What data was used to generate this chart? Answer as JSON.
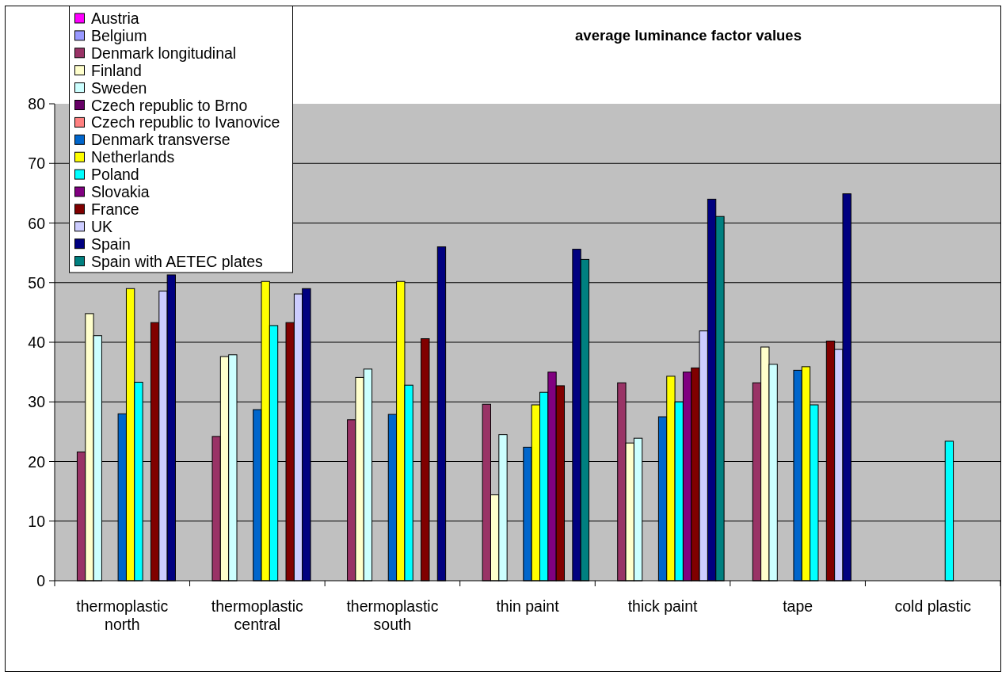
{
  "chart_data": {
    "type": "bar",
    "title": "average luminance factor values",
    "categories": [
      "thermoplastic north",
      "thermoplastic central",
      "thermoplastic south",
      "thin paint",
      "thick paint",
      "tape",
      "cold plastic"
    ],
    "series": [
      {
        "name": "Austria",
        "color": "#ff00ff",
        "values": [
          null,
          null,
          null,
          null,
          null,
          null,
          null
        ]
      },
      {
        "name": "Belgium",
        "color": "#9999ff",
        "values": [
          null,
          null,
          null,
          null,
          null,
          null,
          null
        ]
      },
      {
        "name": "Denmark longitudinal",
        "color": "#993366",
        "values": [
          21.6,
          24.2,
          27.0,
          29.6,
          33.2,
          33.2,
          null
        ]
      },
      {
        "name": "Finland",
        "color": "#ffffcc",
        "values": [
          44.8,
          37.6,
          34.1,
          14.4,
          23.1,
          39.2,
          null
        ]
      },
      {
        "name": "Sweden",
        "color": "#ccffff",
        "values": [
          41.1,
          37.9,
          35.5,
          24.5,
          23.9,
          36.3,
          null
        ]
      },
      {
        "name": "Czech republic to Brno",
        "color": "#660066",
        "values": [
          null,
          null,
          null,
          null,
          null,
          null,
          null
        ]
      },
      {
        "name": "Czech republic to Ivanovice",
        "color": "#ff8080",
        "values": [
          null,
          null,
          null,
          null,
          null,
          null,
          null
        ]
      },
      {
        "name": "Denmark transverse",
        "color": "#0066cc",
        "values": [
          28.0,
          28.7,
          27.9,
          22.4,
          27.5,
          35.3,
          null
        ]
      },
      {
        "name": "Netherlands",
        "color": "#ffff00",
        "values": [
          49.0,
          50.2,
          50.2,
          29.5,
          34.3,
          35.9,
          null
        ]
      },
      {
        "name": "Poland",
        "color": "#00ffff",
        "values": [
          33.3,
          42.8,
          32.8,
          31.6,
          30.0,
          29.5,
          23.4
        ]
      },
      {
        "name": "Slovakia",
        "color": "#800080",
        "values": [
          null,
          null,
          null,
          35.0,
          35.0,
          null,
          null
        ]
      },
      {
        "name": "France",
        "color": "#800000",
        "values": [
          43.3,
          43.3,
          40.6,
          32.7,
          35.7,
          40.2,
          null
        ]
      },
      {
        "name": "UK",
        "color": "#ccccff",
        "values": [
          48.6,
          48.1,
          null,
          null,
          41.9,
          38.8,
          null
        ]
      },
      {
        "name": "Spain",
        "color": "#000080",
        "values": [
          51.3,
          49.0,
          56.0,
          55.6,
          64.0,
          64.9,
          null
        ]
      },
      {
        "name": "Spain with AETEC plates",
        "color": "#008080",
        "values": [
          null,
          null,
          null,
          53.9,
          61.1,
          null,
          null
        ]
      }
    ],
    "ylim": [
      0,
      80
    ],
    "yticks": [
      0,
      10,
      20,
      30,
      40,
      50,
      60,
      70,
      80
    ],
    "grid": "y",
    "legend": "top left"
  }
}
